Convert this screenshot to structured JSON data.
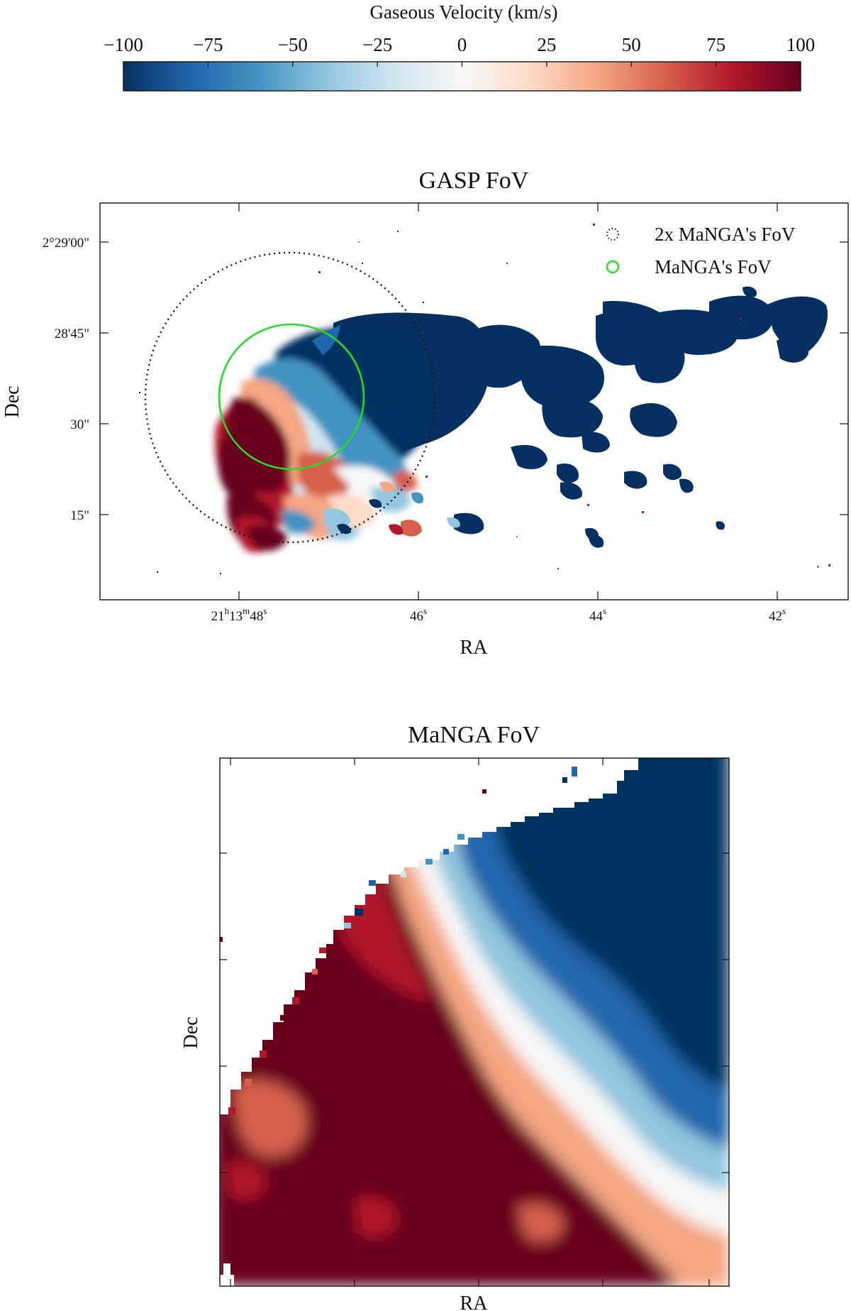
{
  "colorbar": {
    "label": "Gaseous Velocity (km/s)",
    "ticks": [
      "−100",
      "−75",
      "−50",
      "−25",
      "0",
      "25",
      "50",
      "75",
      "100"
    ],
    "range": [
      -100,
      100
    ],
    "colormap": [
      "#053061",
      "#2166ac",
      "#4393c3",
      "#92c5de",
      "#d1e5f0",
      "#f7f7f7",
      "#fddbc7",
      "#f4a582",
      "#d6604d",
      "#b2182b",
      "#67001f"
    ]
  },
  "top_panel": {
    "title": "GASP FoV",
    "xlabel": "RA",
    "ylabel": "Dec",
    "xticks": [
      {
        "h": "21",
        "m": "13",
        "s": "48",
        "full": true
      },
      {
        "s": "46"
      },
      {
        "s": "44"
      },
      {
        "s": "42"
      }
    ],
    "yticks": [
      "2°29'00\"",
      "28'45\"",
      "30\"",
      "15\""
    ],
    "legend": [
      {
        "label": "2x MaNGA's FoV",
        "style": "dotted",
        "color": "#111111"
      },
      {
        "label": "MaNGA's FoV",
        "style": "solid",
        "color": "#22dd22"
      }
    ]
  },
  "bottom_panel": {
    "title": "MaNGA FoV",
    "xlabel": "RA",
    "ylabel": "Dec"
  },
  "chart_data": [
    {
      "type": "heatmap",
      "title": "GASP FoV",
      "xlabel": "RA",
      "ylabel": "Dec",
      "quantity": "Gaseous Velocity (km/s)",
      "value_range": [
        -100,
        100
      ],
      "x_ticks": [
        "21h13m48s",
        "46s",
        "44s",
        "42s"
      ],
      "y_ticks": [
        "2°29'00\"",
        "28'45\"",
        "30\"",
        "15\""
      ],
      "overlays": [
        "2x MaNGA's FoV",
        "MaNGA's FoV"
      ],
      "regions": [
        {
          "ra_s": 47.6,
          "dec_s": 26,
          "velocity": 100,
          "note": "south-east lobe"
        },
        {
          "ra_s": 47.3,
          "dec_s": 18,
          "velocity": 85
        },
        {
          "ra_s": 46.9,
          "dec_s": 27,
          "velocity": 30
        },
        {
          "ra_s": 46.5,
          "dec_s": 24,
          "velocity": -20
        },
        {
          "ra_s": 46.6,
          "dec_s": 37,
          "velocity": -100,
          "note": "north lobe"
        },
        {
          "ra_s": 44.5,
          "dec_s": 33,
          "velocity": -100,
          "note": "tail"
        },
        {
          "ra_s": 42.0,
          "dec_s": 41,
          "velocity": -100,
          "note": "tail end"
        }
      ]
    },
    {
      "type": "heatmap",
      "title": "MaNGA FoV",
      "xlabel": "RA",
      "ylabel": "Dec",
      "quantity": "Gaseous Velocity (km/s)",
      "value_range": [
        -100,
        100
      ],
      "regions": [
        {
          "area": "lower-left",
          "velocity": 100
        },
        {
          "area": "centre",
          "velocity": 0
        },
        {
          "area": "upper-right",
          "velocity": -100
        }
      ]
    }
  ]
}
